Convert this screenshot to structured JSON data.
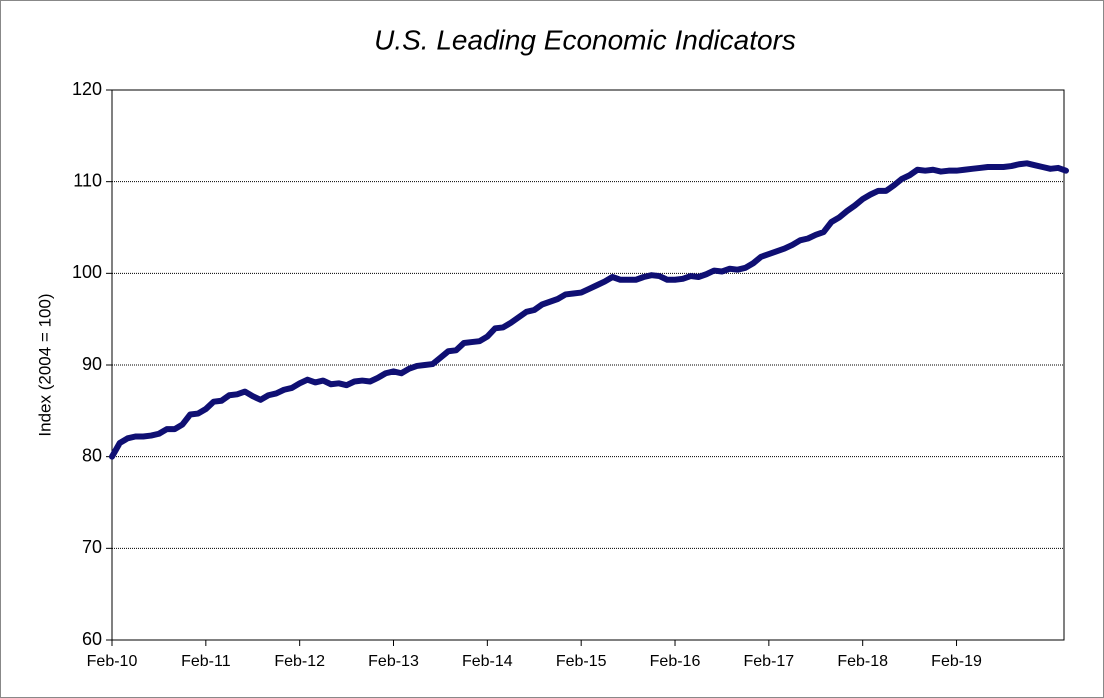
{
  "chart_data": {
    "type": "line",
    "title": "U.S. Leading Economic Indicators",
    "y_label": "Index (2004 = 100)",
    "categories": [
      "Feb-10",
      null,
      null,
      null,
      null,
      null,
      null,
      null,
      null,
      null,
      null,
      null,
      "Feb-11",
      null,
      null,
      null,
      null,
      null,
      null,
      null,
      null,
      null,
      null,
      null,
      "Feb-12",
      null,
      null,
      null,
      null,
      null,
      null,
      null,
      null,
      null,
      null,
      null,
      "Feb-13",
      null,
      null,
      null,
      null,
      null,
      null,
      null,
      null,
      null,
      null,
      null,
      "Feb-14",
      null,
      null,
      null,
      null,
      null,
      null,
      null,
      null,
      null,
      null,
      null,
      "Feb-15",
      null,
      null,
      null,
      null,
      null,
      null,
      null,
      null,
      null,
      null,
      null,
      "Feb-16",
      null,
      null,
      null,
      null,
      null,
      null,
      null,
      null,
      null,
      null,
      null,
      "Feb-17",
      null,
      null,
      null,
      null,
      null,
      null,
      null,
      null,
      null,
      null,
      null,
      "Feb-18",
      null,
      null,
      null,
      null,
      null,
      null,
      null,
      null,
      null,
      null,
      null,
      "Feb-19",
      null,
      null,
      null,
      null,
      null,
      null,
      null,
      null,
      null,
      null,
      null,
      null,
      null,
      null
    ],
    "values": [
      80,
      81.5,
      82,
      82.2,
      82.2,
      82.3,
      82.5,
      83,
      83,
      83.5,
      84.6,
      84.7,
      85.2,
      86,
      86.1,
      86.7,
      86.8,
      87.1,
      86.6,
      86.2,
      86.7,
      86.9,
      87.3,
      87.5,
      88,
      88.4,
      88.1,
      88.3,
      87.9,
      88.0,
      87.8,
      88.2,
      88.3,
      88.2,
      88.6,
      89.1,
      89.3,
      89.1,
      89.6,
      89.9,
      90.0,
      90.1,
      90.8,
      91.5,
      91.6,
      92.4,
      92.5,
      92.6,
      93.1,
      94,
      94.1,
      94.6,
      95.2,
      95.8,
      96.0,
      96.6,
      96.9,
      97.2,
      97.7,
      97.8,
      97.9,
      98.3,
      98.7,
      99.1,
      99.6,
      99.3,
      99.3,
      99.3,
      99.6,
      99.8,
      99.7,
      99.3,
      99.3,
      99.4,
      99.7,
      99.6,
      99.9,
      100.3,
      100.2,
      100.5,
      100.4,
      100.6,
      101.1,
      101.8,
      102.1,
      102.4,
      102.7,
      103.1,
      103.6,
      103.8,
      104.2,
      104.5,
      105.6,
      106.1,
      106.8,
      107.4,
      108.1,
      108.6,
      109.0,
      109.0,
      109.6,
      110.3,
      110.7,
      111.3,
      111.2,
      111.3,
      111.1,
      111.2,
      111.2,
      111.3,
      111.4,
      111.5,
      111.6,
      111.6,
      111.6,
      111.7,
      111.9,
      112.0,
      111.8,
      111.6,
      111.4,
      111.5,
      111.2
    ],
    "color": "#0f0f73",
    "ylim": [
      60,
      120
    ],
    "yticks": [
      60,
      70,
      80,
      90,
      100,
      110,
      120
    ],
    "grid": true
  }
}
